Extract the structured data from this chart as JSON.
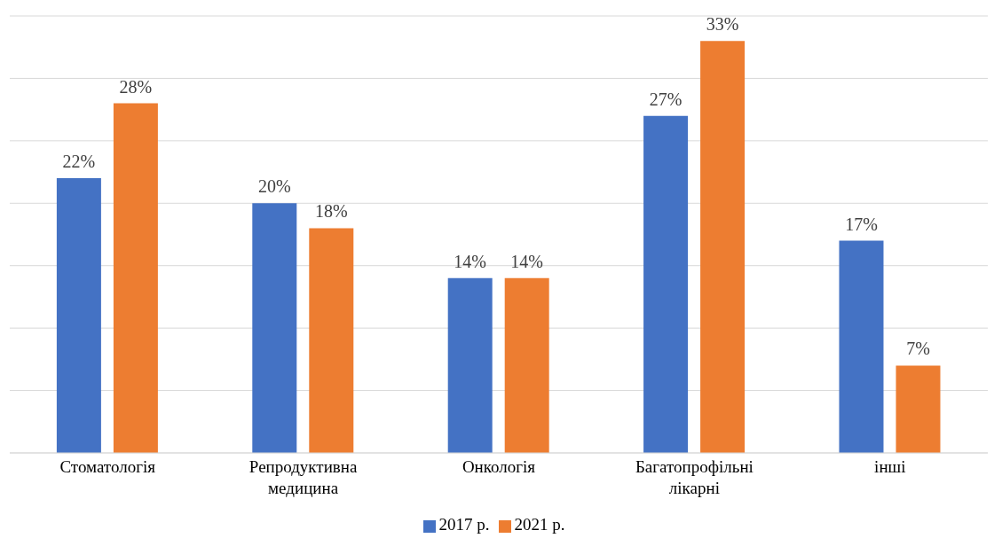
{
  "chart_data": {
    "type": "bar",
    "categories": [
      "Стоматологія",
      "Репродуктивна медицина",
      "Онкологія",
      "Багатопрофільні лікарні",
      "інші"
    ],
    "series": [
      {
        "name": "2017 р.",
        "color": "#4472c4",
        "values": [
          22,
          20,
          14,
          27,
          17
        ],
        "value_labels": [
          "22%",
          "20%",
          "14%",
          "27%",
          "17%"
        ]
      },
      {
        "name": "2021 р.",
        "color": "#ed7d31",
        "values": [
          28,
          18,
          14,
          33,
          7
        ],
        "value_labels": [
          "28%",
          "18%",
          "14%",
          "33%",
          "7%"
        ]
      }
    ],
    "ylim": [
      0,
      35
    ],
    "tick_labels": "x",
    "grid": "y",
    "legend": "bottom"
  }
}
